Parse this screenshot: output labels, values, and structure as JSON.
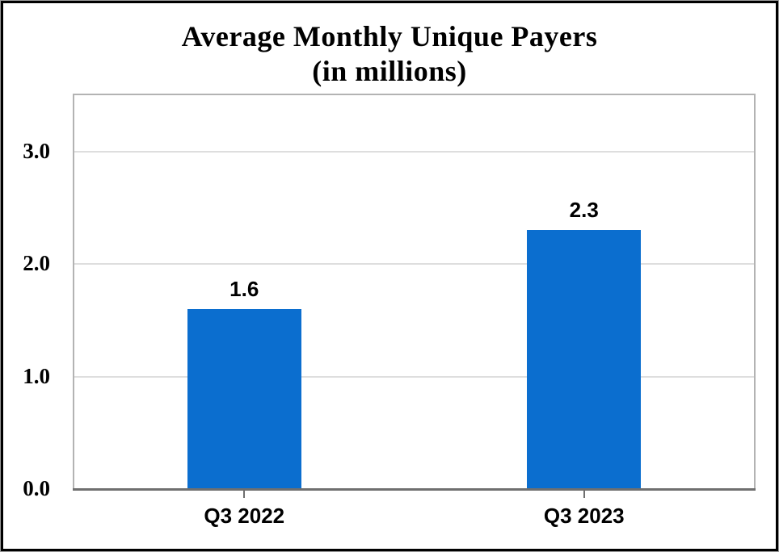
{
  "chart_data": {
    "type": "bar",
    "title": "Average Monthly Unique Payers",
    "subtitle": "(in millions)",
    "categories": [
      "Q3 2022",
      "Q3 2023"
    ],
    "values": [
      1.6,
      2.3
    ],
    "value_labels": [
      "1.6",
      "2.3"
    ],
    "xlabel": "",
    "ylabel": "",
    "ylim": [
      0,
      3.5
    ],
    "yticks": [
      0,
      1,
      2,
      3
    ],
    "ytick_labels": [
      "0.0",
      "1.0",
      "2.0",
      "3.0"
    ],
    "grid": true,
    "legend": false,
    "bar_color": "#0b6ecf",
    "gridline_color": "#dedede",
    "axis_color": "#6f6f6f",
    "plot_border_color": "#b3b3b3",
    "text_color": "#000000",
    "frame_border_color": "#000000"
  }
}
